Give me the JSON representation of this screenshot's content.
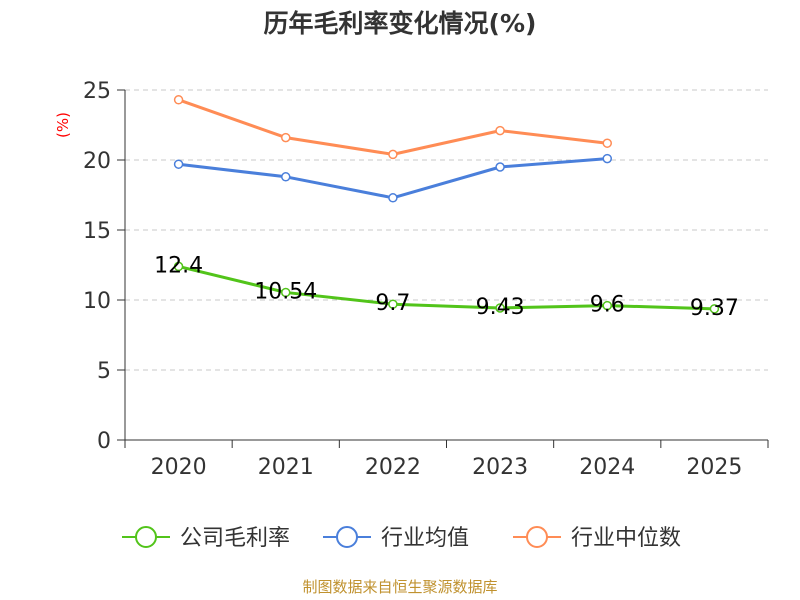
{
  "chart_data": {
    "type": "line",
    "title": "历年毛利率变化情况(%)",
    "ylabel": "(%)",
    "categories": [
      "2020",
      "2021",
      "2022",
      "2023",
      "2024",
      "2025"
    ],
    "ylim": [
      0,
      25
    ],
    "yticks": [
      0,
      5,
      10,
      15,
      20,
      25
    ],
    "grid": true,
    "legend_position": "bottom",
    "series": [
      {
        "name": "公司毛利率",
        "color": "#52c41a",
        "values": [
          12.4,
          10.54,
          9.7,
          9.43,
          9.6,
          9.37
        ],
        "data_labels": [
          "12.4",
          "10.54",
          "9.7",
          "9.43",
          "9.6",
          "9.37"
        ]
      },
      {
        "name": "行业均值",
        "color": "#4a7fdb",
        "values": [
          19.7,
          18.8,
          17.3,
          19.5,
          20.1,
          null
        ]
      },
      {
        "name": "行业中位数",
        "color": "#ff8c55",
        "values": [
          24.3,
          21.6,
          20.4,
          22.1,
          21.2,
          null
        ]
      }
    ]
  },
  "source_text": "制图数据来自恒生聚源数据库"
}
